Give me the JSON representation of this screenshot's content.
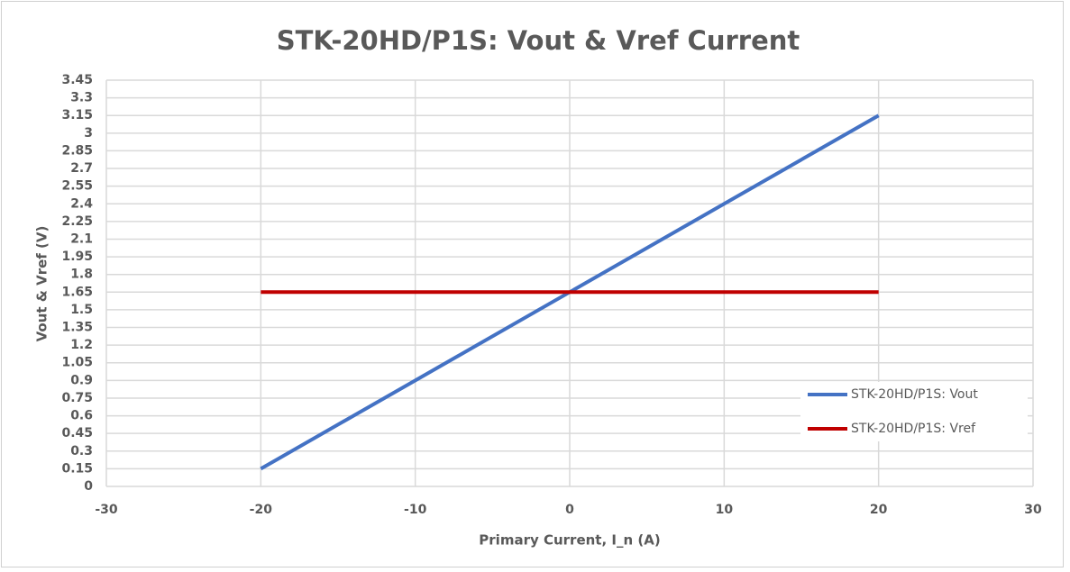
{
  "chart_data": {
    "type": "line",
    "title": "STK-20HD/P1S: Vout & Vref Current",
    "xlabel": "Primary Current, I_n (A)",
    "ylabel": "Vout & Vref (V)",
    "x": [
      -20,
      -10,
      0,
      10,
      20
    ],
    "series": [
      {
        "name": "STK-20HD/P1S: Vout",
        "color": "#4472c4",
        "values": [
          0.15,
          0.9,
          1.65,
          2.4,
          3.15
        ]
      },
      {
        "name": "STK-20HD/P1S: Vref",
        "color": "#c00000",
        "values": [
          1.65,
          1.65,
          1.65,
          1.65,
          1.65
        ]
      }
    ],
    "xlim": [
      -30,
      30
    ],
    "xticks": [
      -30,
      -20,
      -10,
      0,
      10,
      20,
      30
    ],
    "ylim": [
      0,
      3.45
    ],
    "yticks": [
      0,
      0.15,
      0.3,
      0.45,
      0.6,
      0.75,
      0.9,
      1.05,
      1.2,
      1.35,
      1.5,
      1.65,
      1.8,
      1.95,
      2.1,
      2.25,
      2.4,
      2.55,
      2.7,
      2.85,
      3,
      3.15,
      3.3,
      3.45
    ],
    "grid": true,
    "legend": "lower right"
  }
}
